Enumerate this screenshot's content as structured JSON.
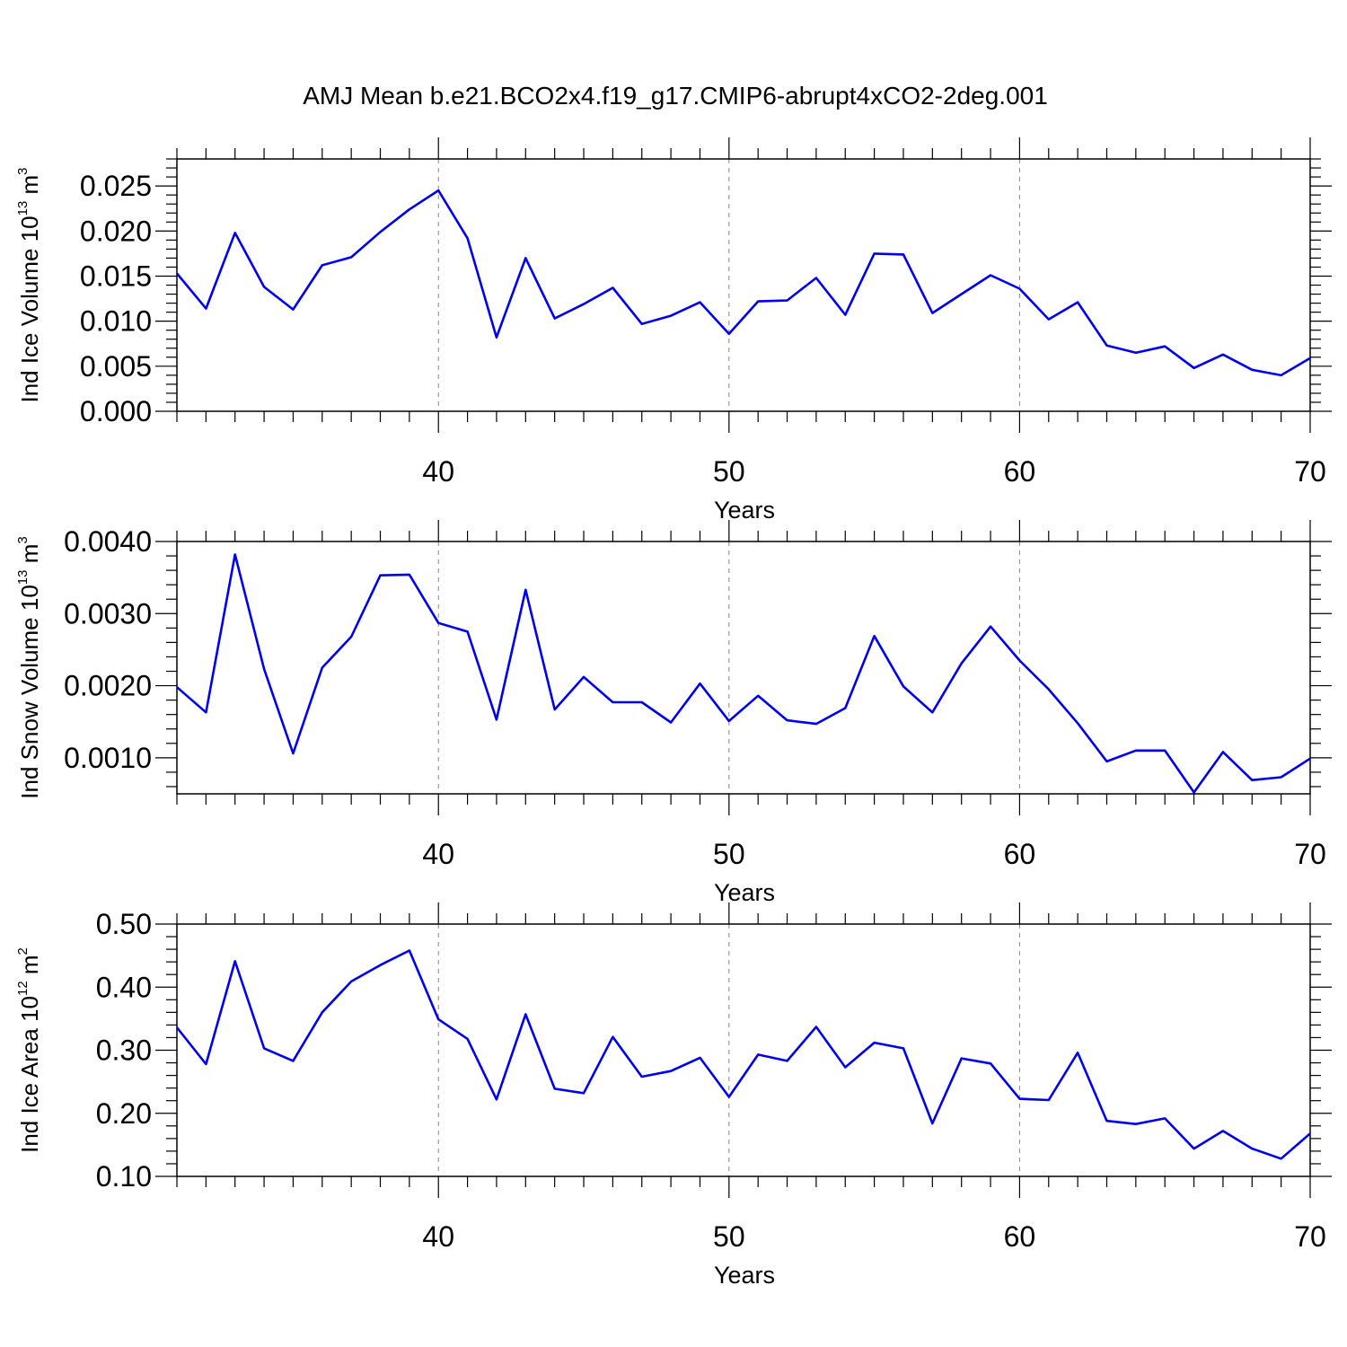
{
  "figure": {
    "title": "AMJ Mean b.e21.BCO2x4.f19_g17.CMIP6-abrupt4xCO2-2deg.001"
  },
  "chart_data": [
    {
      "type": "line",
      "ylabel": "Ind Ice Volume 10",
      "ylabel_exp": "13",
      "ylabel_unit": " m",
      "ylabel_unit_exp": "3",
      "xlabel": "Years",
      "xlim": [
        31,
        70
      ],
      "ylim": [
        0.0,
        0.028
      ],
      "xticks": [
        40,
        50,
        60,
        70
      ],
      "xtick_labels": [
        "40",
        "50",
        "60",
        "70"
      ],
      "yticks": [
        0.0,
        0.005,
        0.01,
        0.015,
        0.02,
        0.025
      ],
      "ytick_labels": [
        "0.000",
        "0.005",
        "0.010",
        "0.015",
        "0.020",
        "0.025"
      ],
      "x_minor_step": 1,
      "y_minor_step": 0.001,
      "vgrid": [
        40,
        50,
        60
      ],
      "series": [
        {
          "color": "#0000ee",
          "x": [
            31,
            32,
            33,
            34,
            35,
            36,
            37,
            38,
            39,
            40,
            41,
            42,
            43,
            44,
            45,
            46,
            47,
            48,
            49,
            50,
            51,
            52,
            53,
            54,
            55,
            56,
            57,
            58,
            59,
            60,
            61,
            62,
            63,
            64,
            65,
            66,
            67,
            68,
            69,
            70
          ],
          "values": [
            0.0153,
            0.0114,
            0.0198,
            0.0138,
            0.0113,
            0.0162,
            0.0171,
            0.0199,
            0.0224,
            0.0245,
            0.0192,
            0.0082,
            0.017,
            0.0103,
            0.0119,
            0.0137,
            0.0097,
            0.0106,
            0.0121,
            0.0086,
            0.0122,
            0.0123,
            0.0148,
            0.0107,
            0.0175,
            0.0174,
            0.0109,
            0.013,
            0.0151,
            0.0136,
            0.0102,
            0.0121,
            0.0073,
            0.0065,
            0.0072,
            0.0048,
            0.0063,
            0.0046,
            0.004,
            0.0059
          ]
        }
      ]
    },
    {
      "type": "line",
      "ylabel": "Ind Snow Volume 10",
      "ylabel_exp": "13",
      "ylabel_unit": " m",
      "ylabel_unit_exp": "3",
      "xlabel": "Years",
      "xlim": [
        31,
        70
      ],
      "ylim": [
        0.0005,
        0.004
      ],
      "xticks": [
        40,
        50,
        60,
        70
      ],
      "xtick_labels": [
        "40",
        "50",
        "60",
        "70"
      ],
      "yticks": [
        0.001,
        0.002,
        0.003,
        0.004
      ],
      "ytick_labels": [
        "0.0010",
        "0.0020",
        "0.0030",
        "0.0040"
      ],
      "x_minor_step": 1,
      "y_minor_step": 0.0002,
      "vgrid": [
        40,
        50,
        60
      ],
      "series": [
        {
          "color": "#0000ee",
          "x": [
            31,
            32,
            33,
            34,
            35,
            36,
            37,
            38,
            39,
            40,
            41,
            42,
            43,
            44,
            45,
            46,
            47,
            48,
            49,
            50,
            51,
            52,
            53,
            54,
            55,
            56,
            57,
            58,
            59,
            60,
            61,
            62,
            63,
            64,
            65,
            66,
            67,
            68,
            69,
            70
          ],
          "values": [
            0.00198,
            0.00163,
            0.00382,
            0.00223,
            0.00106,
            0.00225,
            0.00268,
            0.00353,
            0.00354,
            0.00287,
            0.00275,
            0.00153,
            0.00333,
            0.00167,
            0.00212,
            0.00177,
            0.00177,
            0.00149,
            0.00203,
            0.00151,
            0.00186,
            0.00152,
            0.00147,
            0.00169,
            0.00269,
            0.00199,
            0.00163,
            0.00231,
            0.00282,
            0.00235,
            0.00195,
            0.00148,
            0.00095,
            0.0011,
            0.0011,
            0.00052,
            0.00108,
            0.00069,
            0.00073,
            0.00099
          ]
        }
      ]
    },
    {
      "type": "line",
      "ylabel": "Ind Ice Area 10",
      "ylabel_exp": "12",
      "ylabel_unit": " m",
      "ylabel_unit_exp": "2",
      "xlabel": "Years",
      "xlim": [
        31,
        70
      ],
      "ylim": [
        0.1,
        0.5
      ],
      "xticks": [
        40,
        50,
        60,
        70
      ],
      "xtick_labels": [
        "40",
        "50",
        "60",
        "70"
      ],
      "yticks": [
        0.1,
        0.2,
        0.3,
        0.4,
        0.5
      ],
      "ytick_labels": [
        "0.10",
        "0.20",
        "0.30",
        "0.40",
        "0.50"
      ],
      "x_minor_step": 1,
      "y_minor_step": 0.02,
      "vgrid": [
        40,
        50,
        60
      ],
      "series": [
        {
          "color": "#0000ee",
          "x": [
            31,
            32,
            33,
            34,
            35,
            36,
            37,
            38,
            39,
            40,
            41,
            42,
            43,
            44,
            45,
            46,
            47,
            48,
            49,
            50,
            51,
            52,
            53,
            54,
            55,
            56,
            57,
            58,
            59,
            60,
            61,
            62,
            63,
            64,
            65,
            66,
            67,
            68,
            69,
            70
          ],
          "values": [
            0.336,
            0.278,
            0.441,
            0.303,
            0.283,
            0.36,
            0.409,
            0.435,
            0.458,
            0.349,
            0.318,
            0.222,
            0.357,
            0.239,
            0.232,
            0.321,
            0.258,
            0.267,
            0.288,
            0.226,
            0.293,
            0.283,
            0.337,
            0.273,
            0.312,
            0.303,
            0.184,
            0.287,
            0.279,
            0.223,
            0.221,
            0.296,
            0.188,
            0.183,
            0.192,
            0.144,
            0.172,
            0.144,
            0.128,
            0.168
          ]
        }
      ]
    }
  ]
}
